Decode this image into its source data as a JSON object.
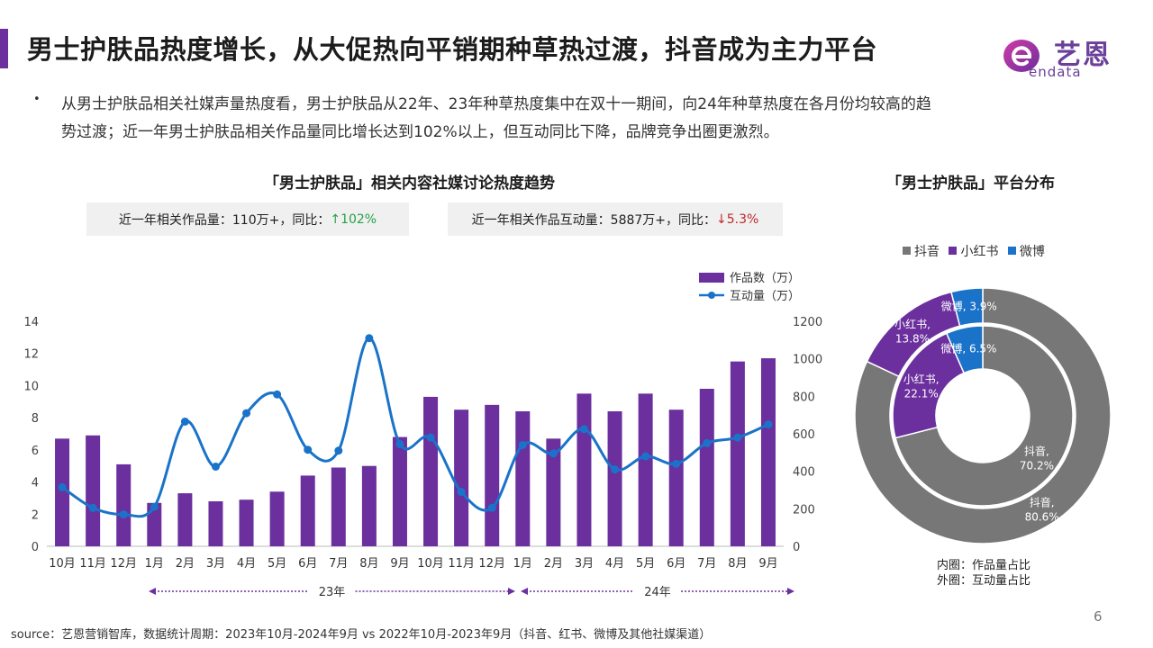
{
  "header": {
    "title": "男士护肤品热度增长，从大促热向平销期种草热过渡，抖音成为主力平台",
    "accent_color": "#6b2f9e"
  },
  "logo": {
    "cn": "艺恩",
    "en": "endata"
  },
  "summary": {
    "bullet": "•",
    "text": "从男士护肤品相关社媒声量热度看，男士护肤品从22年、23年种草热度集中在双十一期间，向24年种草热度在各月份均较高的趋势过渡；近一年男士护肤品相关作品量同比增长达到102%以上，但互动同比下降，品牌竞争出圈更激烈。"
  },
  "trend": {
    "title": "「男士护肤品」相关内容社媒讨论热度趋势",
    "stat_works": {
      "label": "近一年相关作品量：110万+，同比：",
      "value": "↑102%"
    },
    "stat_interact": {
      "label": "近一年相关作品互动量：5887万+，同比：",
      "value": "↓5.3%"
    },
    "year_23": "23年",
    "year_24": "24年"
  },
  "platform": {
    "title": "「男士护肤品」平台分布",
    "legend": [
      "抖音",
      "小红书",
      "微博"
    ],
    "note_inner": "内圈：作品量占比",
    "note_outer": "外圈：互动量占比"
  },
  "footer": {
    "source": "source：艺恩营销智库，数据统计周期：2023年10月-2024年9月 vs 2022年10月-2023年9月（抖音、红书、微博及其他社媒渠道）",
    "page": "6"
  },
  "colors": {
    "bar": "#6b2f9e",
    "line": "#1a73c9",
    "douyin": "#777777",
    "xiaohongshu": "#6b2f9e",
    "weibo": "#1a73c9",
    "up": "#27a14a",
    "down": "#c0282a"
  },
  "chart_data": [
    {
      "type": "bar",
      "title": "「男士护肤品」相关内容社媒讨论热度趋势",
      "categories": [
        "10月",
        "11月",
        "12月",
        "1月",
        "2月",
        "3月",
        "4月",
        "5月",
        "6月",
        "7月",
        "8月",
        "9月",
        "10月",
        "11月",
        "12月",
        "1月",
        "2月",
        "3月",
        "4月",
        "5月",
        "6月",
        "7月",
        "8月",
        "9月"
      ],
      "series": [
        {
          "name": "作品数（万）",
          "type": "bar",
          "axis": "left",
          "values": [
            6.7,
            6.9,
            5.1,
            2.7,
            3.3,
            2.8,
            2.9,
            3.4,
            4.4,
            4.9,
            5.0,
            6.8,
            9.3,
            8.5,
            8.8,
            8.4,
            6.7,
            9.5,
            8.4,
            9.5,
            8.5,
            9.8,
            11.5,
            11.7
          ]
        },
        {
          "name": "互动量（万）",
          "type": "line",
          "axis": "right",
          "values": [
            315,
            205,
            170,
            210,
            665,
            425,
            710,
            810,
            515,
            510,
            1110,
            545,
            580,
            290,
            205,
            540,
            495,
            625,
            410,
            480,
            440,
            550,
            580,
            650
          ]
        }
      ],
      "ylim_left": [
        0,
        14
      ],
      "yticks_left": [
        0,
        2,
        4,
        6,
        8,
        10,
        12,
        14
      ],
      "ylim_right": [
        0,
        1200
      ],
      "yticks_right": [
        0,
        200,
        400,
        600,
        800,
        1000,
        1200
      ],
      "legend": "top-right",
      "grid": false
    },
    {
      "type": "pie",
      "title": "「男士护肤品」平台分布",
      "donut": true,
      "rings": [
        {
          "name": "内圈",
          "slices": [
            {
              "label": "抖音",
              "value": 70.2
            },
            {
              "label": "小红书",
              "value": 22.1
            },
            {
              "label": "微博",
              "value": 6.5
            }
          ]
        },
        {
          "name": "外圈",
          "slices": [
            {
              "label": "抖音",
              "value": 80.6
            },
            {
              "label": "小红书",
              "value": 13.8
            },
            {
              "label": "微博",
              "value": 3.9
            }
          ]
        }
      ],
      "legend": "top"
    }
  ]
}
